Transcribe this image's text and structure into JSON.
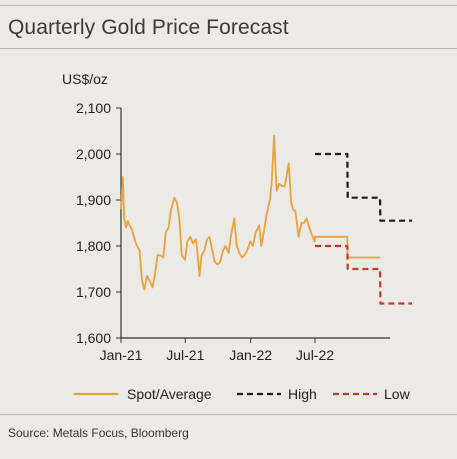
{
  "title": "Quarterly Gold Price Forecast",
  "source": "Source: Metals Focus, Bloomberg",
  "chart_data": {
    "type": "line",
    "title": "Quarterly Gold Price Forecast",
    "ylabel": "US$/oz",
    "ylim": [
      1600,
      2100
    ],
    "yticks": [
      1600,
      1700,
      1800,
      1900,
      2000,
      2100
    ],
    "ytick_labels": [
      "1,600",
      "1,700",
      "1,800",
      "1,900",
      "2,000",
      "2,100"
    ],
    "xlim": [
      "2021-01-01",
      "2022-12-31"
    ],
    "xticks": [
      "2021-01-01",
      "2021-07-01",
      "2022-01-01",
      "2022-07-01"
    ],
    "xtick_labels": [
      "Jan-21",
      "Jul-21",
      "Jan-22",
      "Jul-22"
    ],
    "legend": "bottom",
    "grid": false,
    "colors": {
      "spot": "#e8a23a",
      "high": "#1a1a1a",
      "low": "#c0392b"
    },
    "series": [
      {
        "name": "Spot/Average",
        "style": "solid",
        "x": [
          "2021-01-01",
          "2021-01-06",
          "2021-01-10",
          "2021-01-15",
          "2021-01-20",
          "2021-01-25",
          "2021-02-01",
          "2021-02-08",
          "2021-02-15",
          "2021-02-22",
          "2021-03-01",
          "2021-03-08",
          "2021-03-15",
          "2021-03-22",
          "2021-03-31",
          "2021-04-07",
          "2021-04-14",
          "2021-04-21",
          "2021-04-30",
          "2021-05-07",
          "2021-05-15",
          "2021-05-22",
          "2021-05-31",
          "2021-06-07",
          "2021-06-14",
          "2021-06-21",
          "2021-06-30",
          "2021-07-07",
          "2021-07-15",
          "2021-07-22",
          "2021-07-31",
          "2021-08-06",
          "2021-08-10",
          "2021-08-16",
          "2021-08-24",
          "2021-08-31",
          "2021-09-07",
          "2021-09-15",
          "2021-09-22",
          "2021-09-30",
          "2021-10-07",
          "2021-10-15",
          "2021-10-22",
          "2021-10-31",
          "2021-11-07",
          "2021-11-16",
          "2021-11-23",
          "2021-11-30",
          "2021-12-07",
          "2021-12-15",
          "2021-12-22",
          "2021-12-31",
          "2022-01-07",
          "2022-01-15",
          "2022-01-25",
          "2022-01-31",
          "2022-02-07",
          "2022-02-15",
          "2022-02-24",
          "2022-03-01",
          "2022-03-08",
          "2022-03-15",
          "2022-03-22",
          "2022-03-31",
          "2022-04-07",
          "2022-04-18",
          "2022-04-25",
          "2022-04-30",
          "2022-05-07",
          "2022-05-16",
          "2022-05-24",
          "2022-05-31",
          "2022-06-07",
          "2022-06-15",
          "2022-06-22",
          "2022-06-30",
          "2022-07-01",
          "2022-09-30",
          "2022-10-01",
          "2022-12-31"
        ],
        "y": [
          1880,
          1950,
          1860,
          1840,
          1855,
          1845,
          1835,
          1815,
          1800,
          1790,
          1725,
          1705,
          1735,
          1725,
          1710,
          1740,
          1780,
          1780,
          1775,
          1830,
          1840,
          1880,
          1905,
          1895,
          1860,
          1780,
          1770,
          1810,
          1820,
          1805,
          1815,
          1770,
          1735,
          1780,
          1790,
          1815,
          1820,
          1790,
          1765,
          1760,
          1765,
          1790,
          1800,
          1785,
          1825,
          1860,
          1800,
          1785,
          1775,
          1780,
          1790,
          1810,
          1800,
          1830,
          1845,
          1800,
          1830,
          1870,
          1900,
          1935,
          2040,
          1920,
          1935,
          1930,
          1930,
          1980,
          1895,
          1880,
          1875,
          1820,
          1850,
          1850,
          1860,
          1840,
          1825,
          1810,
          1820,
          1820,
          1775,
          1775
        ]
      },
      {
        "name": "High",
        "style": "dashed",
        "x": [
          "2022-07-01",
          "2022-09-30",
          "2022-10-01",
          "2022-12-31",
          "2023-01-01",
          "2023-03-31"
        ],
        "y": [
          2000,
          2000,
          1905,
          1905,
          1855,
          1855
        ]
      },
      {
        "name": "Low",
        "style": "dashed",
        "x": [
          "2022-07-01",
          "2022-09-30",
          "2022-10-01",
          "2022-12-31",
          "2023-01-01",
          "2023-03-31"
        ],
        "y": [
          1800,
          1800,
          1750,
          1750,
          1675,
          1675
        ]
      }
    ]
  }
}
